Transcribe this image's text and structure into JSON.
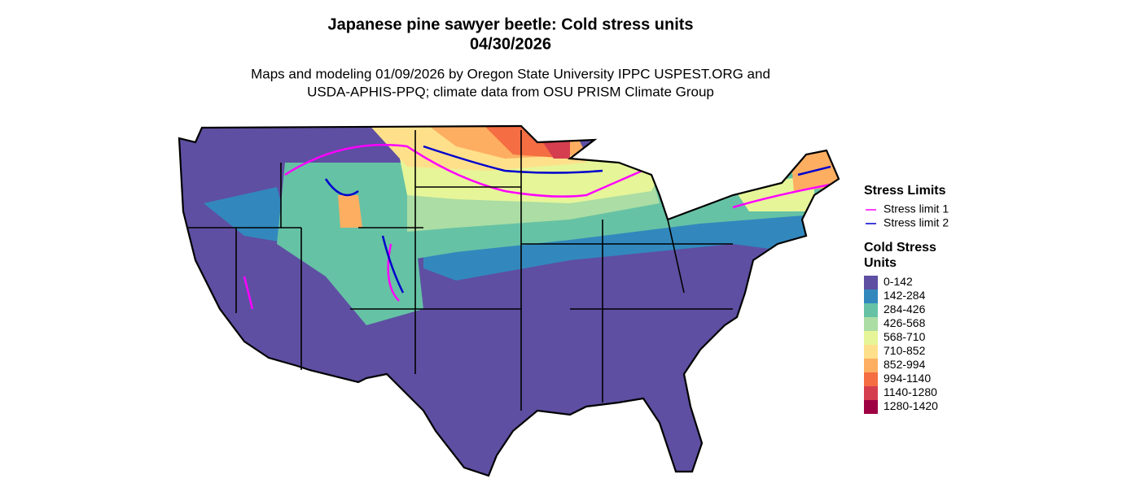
{
  "title": [
    "Japanese pine sawyer beetle: Cold stress units",
    "04/30/2026"
  ],
  "subtitle": [
    "Maps and modeling 01/09/2026 by Oregon State University IPPC USPEST.ORG and",
    "USDA-APHIS-PPQ; climate data from OSU PRISM Climate Group"
  ],
  "legend": {
    "stress_limits": {
      "title": "Stress Limits",
      "items": [
        {
          "label": "Stress limit 1",
          "color": "#ff00ff"
        },
        {
          "label": "Stress limit 2",
          "color": "#0000cc"
        }
      ]
    },
    "cold_stress": {
      "title": [
        "Cold Stress",
        "Units"
      ],
      "items": [
        {
          "label": "0-142",
          "color": "#5e4fa2"
        },
        {
          "label": "142-284",
          "color": "#3288bd"
        },
        {
          "label": "284-426",
          "color": "#66c2a5"
        },
        {
          "label": "426-568",
          "color": "#abdda4"
        },
        {
          "label": "568-710",
          "color": "#e6f598"
        },
        {
          "label": "710-852",
          "color": "#fee08b"
        },
        {
          "label": "852-994",
          "color": "#fdae61"
        },
        {
          "label": "994-1140",
          "color": "#f46d43"
        },
        {
          "label": "1140-1280",
          "color": "#d53e4f"
        },
        {
          "label": "1280-1420",
          "color": "#9e0142"
        }
      ]
    }
  }
}
